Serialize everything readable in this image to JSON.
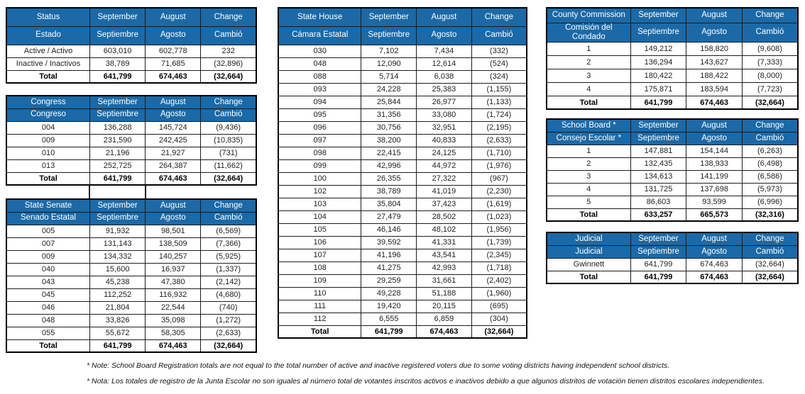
{
  "colors": {
    "header_blue": "#1B69A6",
    "header_text": "#FFFFFF",
    "grid_border": "#1C1C1C",
    "body_text": "#212121"
  },
  "tables": {
    "status": {
      "header_en": [
        "Status",
        "September",
        "August",
        "Change"
      ],
      "header_es": [
        "Estado",
        "Septiembre",
        "Agosto",
        "Cambió"
      ],
      "rows": [
        [
          "Active / Activo",
          "603,010",
          "602,778",
          "232"
        ],
        [
          "Inactive / Inactivos",
          "38,789",
          "71,685",
          "(32,896)"
        ]
      ],
      "total_row": [
        "Total",
        "641,799",
        "674,463",
        "(32,664)"
      ]
    },
    "congress": {
      "header_en": [
        "Congress",
        "September",
        "August",
        "Change"
      ],
      "header_es": [
        "Congreso",
        "Septiembre",
        "Agosto",
        "Cambió"
      ],
      "rows": [
        [
          "004",
          "136,288",
          "145,724",
          "(9,436)"
        ],
        [
          "009",
          "231,590",
          "242,425",
          "(10,835)"
        ],
        [
          "010",
          "21,196",
          "21,927",
          "(731)"
        ],
        [
          "013",
          "252,725",
          "264,387",
          "(11,662)"
        ]
      ],
      "total_row": [
        "Total",
        "641,799",
        "674,463",
        "(32,664)"
      ]
    },
    "state_senate": {
      "header_en": [
        "State Senate",
        "September",
        "August",
        "Change"
      ],
      "header_es": [
        "Senado Estatal",
        "Septiembre",
        "Agosto",
        "Cambió"
      ],
      "rows": [
        [
          "005",
          "91,932",
          "98,501",
          "(6,569)"
        ],
        [
          "007",
          "131,143",
          "138,509",
          "(7,366)"
        ],
        [
          "009",
          "134,332",
          "140,257",
          "(5,925)"
        ],
        [
          "040",
          "15,600",
          "16,937",
          "(1,337)"
        ],
        [
          "043",
          "45,238",
          "47,380",
          "(2,142)"
        ],
        [
          "045",
          "112,252",
          "116,932",
          "(4,680)"
        ],
        [
          "046",
          "21,804",
          "22,544",
          "(740)"
        ],
        [
          "048",
          "33,826",
          "35,098",
          "(1,272)"
        ],
        [
          "055",
          "55,672",
          "58,305",
          "(2,633)"
        ]
      ],
      "total_row": [
        "Total",
        "641,799",
        "674,463",
        "(32,664)"
      ]
    },
    "state_house": {
      "header_en": [
        "State House",
        "September",
        "August",
        "Change"
      ],
      "header_es": [
        "Cámara Estatal",
        "Septiembre",
        "Agosto",
        "Cambió"
      ],
      "rows": [
        [
          "030",
          "7,102",
          "7,434",
          "(332)"
        ],
        [
          "048",
          "12,090",
          "12,614",
          "(524)"
        ],
        [
          "088",
          "5,714",
          "6,038",
          "(324)"
        ],
        [
          "093",
          "24,228",
          "25,383",
          "(1,155)"
        ],
        [
          "094",
          "25,844",
          "26,977",
          "(1,133)"
        ],
        [
          "095",
          "31,356",
          "33,080",
          "(1,724)"
        ],
        [
          "096",
          "30,756",
          "32,951",
          "(2,195)"
        ],
        [
          "097",
          "38,200",
          "40,833",
          "(2,633)"
        ],
        [
          "098",
          "22,415",
          "24,125",
          "(1,710)"
        ],
        [
          "099",
          "42,996",
          "44,972",
          "(1,976)"
        ],
        [
          "100",
          "26,355",
          "27,322",
          "(967)"
        ],
        [
          "102",
          "38,789",
          "41,019",
          "(2,230)"
        ],
        [
          "103",
          "35,804",
          "37,423",
          "(1,619)"
        ],
        [
          "104",
          "27,479",
          "28,502",
          "(1,023)"
        ],
        [
          "105",
          "46,146",
          "48,102",
          "(1,956)"
        ],
        [
          "106",
          "39,592",
          "41,331",
          "(1,739)"
        ],
        [
          "107",
          "41,196",
          "43,541",
          "(2,345)"
        ],
        [
          "108",
          "41,275",
          "42,993",
          "(1,718)"
        ],
        [
          "109",
          "29,259",
          "31,661",
          "(2,402)"
        ],
        [
          "110",
          "49,228",
          "51,188",
          "(1,960)"
        ],
        [
          "111",
          "19,420",
          "20,115",
          "(695)"
        ],
        [
          "112",
          "6,555",
          "6,859",
          "(304)"
        ]
      ],
      "total_row": [
        "Total",
        "641,799",
        "674,463",
        "(32,664)"
      ]
    },
    "county_commission": {
      "header_en": [
        "County Commission",
        "September",
        "August",
        "Change"
      ],
      "header_es": [
        "Comisión del Condado",
        "Septiembre",
        "Agosto",
        "Cambió"
      ],
      "rows": [
        [
          "1",
          "149,212",
          "158,820",
          "(9,608)"
        ],
        [
          "2",
          "136,294",
          "143,627",
          "(7,333)"
        ],
        [
          "3",
          "180,422",
          "188,422",
          "(8,000)"
        ],
        [
          "4",
          "175,871",
          "183,594",
          "(7,723)"
        ]
      ],
      "total_row": [
        "Total",
        "641,799",
        "674,463",
        "(32,664)"
      ]
    },
    "school_board": {
      "header_en": [
        "School Board *",
        "September",
        "August",
        "Change"
      ],
      "header_es": [
        "Consejo Escolar *",
        "Septiembre",
        "Agosto",
        "Cambió"
      ],
      "rows": [
        [
          "1",
          "147,881",
          "154,144",
          "(6,263)"
        ],
        [
          "2",
          "132,435",
          "138,933",
          "(6,498)"
        ],
        [
          "3",
          "134,613",
          "141,199",
          "(6,586)"
        ],
        [
          "4",
          "131,725",
          "137,698",
          "(5,973)"
        ],
        [
          "5",
          "86,603",
          "93,599",
          "(6,996)"
        ]
      ],
      "total_row": [
        "Total",
        "633,257",
        "665,573",
        "(32,316)"
      ]
    },
    "judicial": {
      "header_en": [
        "Judicial",
        "September",
        "August",
        "Change"
      ],
      "header_es": [
        "Judicial",
        "Septiembre",
        "Agosto",
        "Cambió"
      ],
      "rows": [
        [
          "Gwinnett",
          "641,799",
          "674,463",
          "(32,664)"
        ]
      ],
      "total_row": [
        "Total",
        "641,799",
        "674,463",
        "(32,664)"
      ]
    }
  },
  "footnotes": {
    "en": "* Note: School Board Registration totals are not equal to the total number of active and inactive registered voters due to some voting districts having independent school districts.",
    "es": "* Nota: Los totales de registro de la Junta Escolar no son iguales al número total de votantes inscritos activos e inactivos debido a que algunos distritos de votación tienen distritos escolares independientes."
  }
}
